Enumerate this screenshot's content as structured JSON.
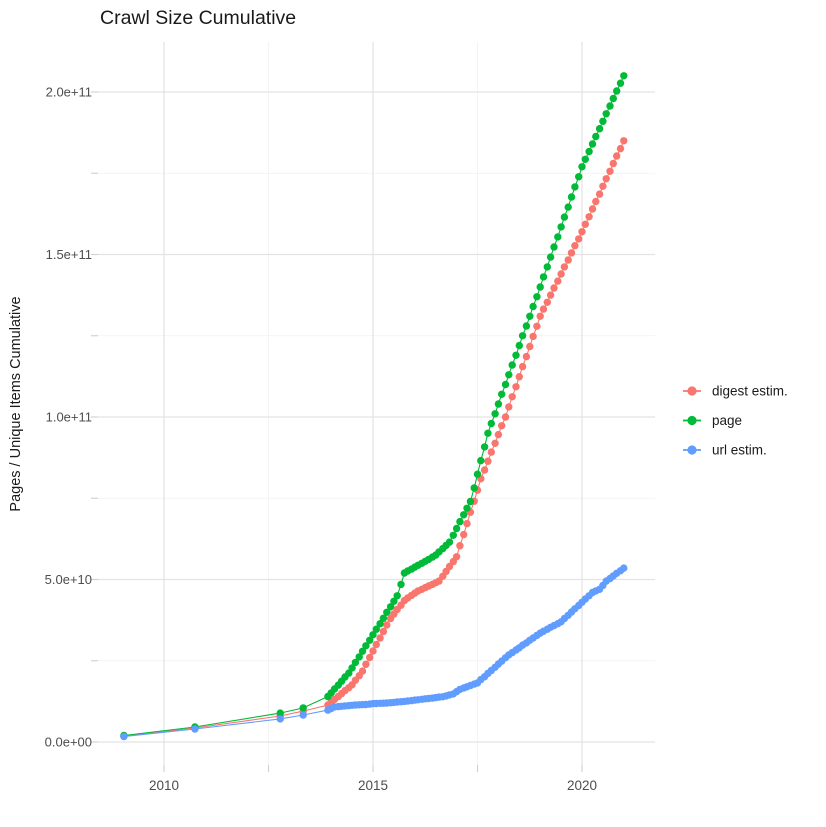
{
  "title": "Crawl Size Cumulative",
  "chart_data": {
    "type": "scatter",
    "title": "Crawl Size Cumulative",
    "xlabel": "",
    "ylabel": "Pages / Unique Items Cumulative",
    "value_unit": "billions (1e9)",
    "xlim": [
      2008.4,
      2021.75
    ],
    "ylim_e9": [
      0,
      215
    ],
    "grid": true,
    "legend_position": "right",
    "x_ticks": [
      {
        "v": 2010,
        "label": "2010"
      },
      {
        "v": 2015,
        "label": "2015"
      },
      {
        "v": 2020,
        "label": "2020"
      }
    ],
    "x_minor": [
      2012.5,
      2017.5
    ],
    "y_ticks": [
      {
        "v": 0,
        "label": "0.0e+00"
      },
      {
        "v": 50,
        "label": "5.0e+10"
      },
      {
        "v": 100,
        "label": "1.0e+11"
      },
      {
        "v": 150,
        "label": "1.5e+11"
      },
      {
        "v": 200,
        "label": "2.0e+11"
      }
    ],
    "y_minor": [
      25,
      75,
      125,
      175
    ],
    "series": [
      {
        "name": "digest estim.",
        "color": "#F8766D",
        "points": [
          [
            2009.04,
            1.8
          ],
          [
            2010.74,
            4.3
          ],
          [
            2012.78,
            8.0
          ],
          [
            2013.33,
            9.5
          ],
          [
            2013.92,
            11.4
          ],
          [
            2014.0,
            12.3
          ],
          [
            2014.08,
            13.1
          ],
          [
            2014.17,
            14.0
          ],
          [
            2014.25,
            14.9
          ],
          [
            2014.33,
            15.8
          ],
          [
            2014.42,
            16.7
          ],
          [
            2014.5,
            17.6
          ],
          [
            2014.58,
            19.0
          ],
          [
            2014.67,
            20.4
          ],
          [
            2014.75,
            21.8
          ],
          [
            2014.83,
            23.9
          ],
          [
            2014.92,
            26.0
          ],
          [
            2015.0,
            28.0
          ],
          [
            2015.08,
            30.0
          ],
          [
            2015.17,
            32.0
          ],
          [
            2015.25,
            34.0
          ],
          [
            2015.33,
            36.0
          ],
          [
            2015.42,
            38.0
          ],
          [
            2015.5,
            39.4
          ],
          [
            2015.58,
            40.8
          ],
          [
            2015.67,
            42.1
          ],
          [
            2015.75,
            43.5
          ],
          [
            2015.83,
            44.3
          ],
          [
            2015.92,
            45.1
          ],
          [
            2016.0,
            45.8
          ],
          [
            2016.08,
            46.5
          ],
          [
            2016.17,
            47.0
          ],
          [
            2016.25,
            47.5
          ],
          [
            2016.33,
            48.0
          ],
          [
            2016.42,
            48.5
          ],
          [
            2016.5,
            49.0
          ],
          [
            2016.58,
            49.5
          ],
          [
            2016.67,
            51.0
          ],
          [
            2016.75,
            52.5
          ],
          [
            2016.83,
            54.0
          ],
          [
            2016.92,
            55.5
          ],
          [
            2017.0,
            57.0
          ],
          [
            2017.08,
            60.4
          ],
          [
            2017.17,
            63.8
          ],
          [
            2017.25,
            67.2
          ],
          [
            2017.33,
            70.7
          ],
          [
            2017.42,
            74.1
          ],
          [
            2017.5,
            77.5
          ],
          [
            2017.58,
            81.0
          ],
          [
            2017.67,
            83.7
          ],
          [
            2017.75,
            86.4
          ],
          [
            2017.83,
            89.2
          ],
          [
            2017.92,
            91.9
          ],
          [
            2018.0,
            94.6
          ],
          [
            2018.08,
            97.3
          ],
          [
            2018.17,
            100.0
          ],
          [
            2018.25,
            103.1
          ],
          [
            2018.33,
            106.2
          ],
          [
            2018.42,
            109.3
          ],
          [
            2018.5,
            112.4
          ],
          [
            2018.58,
            115.5
          ],
          [
            2018.67,
            118.6
          ],
          [
            2018.75,
            121.7
          ],
          [
            2018.83,
            124.8
          ],
          [
            2018.92,
            127.9
          ],
          [
            2019.0,
            131.0
          ],
          [
            2019.08,
            133.2
          ],
          [
            2019.17,
            135.3
          ],
          [
            2019.25,
            137.5
          ],
          [
            2019.33,
            139.7
          ],
          [
            2019.42,
            141.8
          ],
          [
            2019.5,
            144.0
          ],
          [
            2019.58,
            146.2
          ],
          [
            2019.67,
            148.3
          ],
          [
            2019.75,
            150.5
          ],
          [
            2019.83,
            152.7
          ],
          [
            2019.92,
            154.8
          ],
          [
            2020.0,
            157.0
          ],
          [
            2020.08,
            159.3
          ],
          [
            2020.17,
            161.6
          ],
          [
            2020.25,
            164.0
          ],
          [
            2020.33,
            166.3
          ],
          [
            2020.42,
            168.6
          ],
          [
            2020.5,
            171.0
          ],
          [
            2020.58,
            173.3
          ],
          [
            2020.67,
            175.6
          ],
          [
            2020.75,
            178.0
          ],
          [
            2020.83,
            180.3
          ],
          [
            2020.92,
            182.6
          ],
          [
            2021.0,
            185.0
          ]
        ]
      },
      {
        "name": "page",
        "color": "#00BA38",
        "points": [
          [
            2009.04,
            2.0
          ],
          [
            2010.74,
            4.6
          ],
          [
            2012.78,
            8.9
          ],
          [
            2013.33,
            10.5
          ],
          [
            2013.92,
            14.0
          ],
          [
            2014.0,
            15.1
          ],
          [
            2014.08,
            16.3
          ],
          [
            2014.17,
            17.5
          ],
          [
            2014.25,
            18.7
          ],
          [
            2014.33,
            20.0
          ],
          [
            2014.42,
            21.2
          ],
          [
            2014.5,
            22.8
          ],
          [
            2014.58,
            24.5
          ],
          [
            2014.67,
            26.2
          ],
          [
            2014.75,
            27.9
          ],
          [
            2014.83,
            29.6
          ],
          [
            2014.92,
            31.3
          ],
          [
            2015.0,
            33.0
          ],
          [
            2015.08,
            34.7
          ],
          [
            2015.17,
            36.4
          ],
          [
            2015.25,
            38.1
          ],
          [
            2015.33,
            39.9
          ],
          [
            2015.42,
            41.6
          ],
          [
            2015.5,
            43.3
          ],
          [
            2015.58,
            45.0
          ],
          [
            2015.67,
            48.5
          ],
          [
            2015.75,
            52.0
          ],
          [
            2015.83,
            52.6
          ],
          [
            2015.92,
            53.2
          ],
          [
            2016.0,
            53.8
          ],
          [
            2016.08,
            54.4
          ],
          [
            2016.17,
            55.0
          ],
          [
            2016.25,
            55.6
          ],
          [
            2016.33,
            56.2
          ],
          [
            2016.42,
            56.9
          ],
          [
            2016.5,
            57.5
          ],
          [
            2016.58,
            58.5
          ],
          [
            2016.67,
            59.5
          ],
          [
            2016.75,
            60.5
          ],
          [
            2016.83,
            61.5
          ],
          [
            2016.92,
            63.6
          ],
          [
            2017.0,
            65.7
          ],
          [
            2017.08,
            67.8
          ],
          [
            2017.17,
            69.9
          ],
          [
            2017.25,
            71.9
          ],
          [
            2017.33,
            74.0
          ],
          [
            2017.42,
            78.2
          ],
          [
            2017.5,
            82.4
          ],
          [
            2017.58,
            86.6
          ],
          [
            2017.67,
            90.8
          ],
          [
            2017.75,
            95.0
          ],
          [
            2017.83,
            98.0
          ],
          [
            2017.92,
            101.0
          ],
          [
            2018.0,
            104.0
          ],
          [
            2018.08,
            107.0
          ],
          [
            2018.17,
            110.0
          ],
          [
            2018.25,
            113.0
          ],
          [
            2018.33,
            116.0
          ],
          [
            2018.42,
            119.0
          ],
          [
            2018.5,
            122.0
          ],
          [
            2018.58,
            125.0
          ],
          [
            2018.67,
            128.0
          ],
          [
            2018.75,
            131.0
          ],
          [
            2018.83,
            134.0
          ],
          [
            2018.92,
            137.0
          ],
          [
            2019.0,
            140.0
          ],
          [
            2019.08,
            143.1
          ],
          [
            2019.17,
            146.2
          ],
          [
            2019.25,
            149.2
          ],
          [
            2019.33,
            152.3
          ],
          [
            2019.42,
            155.4
          ],
          [
            2019.5,
            158.5
          ],
          [
            2019.58,
            161.5
          ],
          [
            2019.67,
            164.6
          ],
          [
            2019.75,
            167.7
          ],
          [
            2019.83,
            170.8
          ],
          [
            2019.92,
            173.9
          ],
          [
            2020.0,
            177.0
          ],
          [
            2020.08,
            179.3
          ],
          [
            2020.17,
            181.7
          ],
          [
            2020.25,
            184.0
          ],
          [
            2020.33,
            186.3
          ],
          [
            2020.42,
            188.7
          ],
          [
            2020.5,
            191.0
          ],
          [
            2020.58,
            193.3
          ],
          [
            2020.67,
            195.7
          ],
          [
            2020.75,
            198.0
          ],
          [
            2020.83,
            200.3
          ],
          [
            2020.92,
            202.7
          ],
          [
            2021.0,
            205.0
          ]
        ]
      },
      {
        "name": "url estim.",
        "color": "#619CFF",
        "points": [
          [
            2009.04,
            1.7
          ],
          [
            2010.74,
            4.0
          ],
          [
            2012.78,
            7.1
          ],
          [
            2013.33,
            8.3
          ],
          [
            2013.92,
            9.8
          ],
          [
            2014.0,
            10.3
          ],
          [
            2014.08,
            10.8
          ],
          [
            2014.17,
            10.9
          ],
          [
            2014.25,
            11.0
          ],
          [
            2014.33,
            11.1
          ],
          [
            2014.42,
            11.2
          ],
          [
            2014.5,
            11.3
          ],
          [
            2014.58,
            11.4
          ],
          [
            2014.67,
            11.45
          ],
          [
            2014.75,
            11.5
          ],
          [
            2014.83,
            11.55
          ],
          [
            2014.92,
            11.65
          ],
          [
            2015.0,
            11.8
          ],
          [
            2015.08,
            11.85
          ],
          [
            2015.17,
            11.9
          ],
          [
            2015.25,
            11.95
          ],
          [
            2015.33,
            12.0
          ],
          [
            2015.42,
            12.1
          ],
          [
            2015.5,
            12.2
          ],
          [
            2015.58,
            12.3
          ],
          [
            2015.67,
            12.4
          ],
          [
            2015.75,
            12.5
          ],
          [
            2015.83,
            12.6
          ],
          [
            2015.92,
            12.75
          ],
          [
            2016.0,
            12.9
          ],
          [
            2016.08,
            13.0
          ],
          [
            2016.17,
            13.15
          ],
          [
            2016.25,
            13.3
          ],
          [
            2016.33,
            13.4
          ],
          [
            2016.42,
            13.5
          ],
          [
            2016.5,
            13.65
          ],
          [
            2016.58,
            13.8
          ],
          [
            2016.67,
            13.9
          ],
          [
            2016.75,
            14.2
          ],
          [
            2016.83,
            14.5
          ],
          [
            2016.92,
            14.8
          ],
          [
            2017.0,
            15.5
          ],
          [
            2017.08,
            16.2
          ],
          [
            2017.17,
            16.6
          ],
          [
            2017.25,
            17.0
          ],
          [
            2017.33,
            17.4
          ],
          [
            2017.42,
            17.8
          ],
          [
            2017.5,
            18.2
          ],
          [
            2017.58,
            19.2
          ],
          [
            2017.67,
            20.1
          ],
          [
            2017.75,
            21.1
          ],
          [
            2017.83,
            22.0
          ],
          [
            2017.92,
            23.0
          ],
          [
            2018.0,
            24.0
          ],
          [
            2018.08,
            24.9
          ],
          [
            2018.17,
            25.9
          ],
          [
            2018.25,
            26.8
          ],
          [
            2018.33,
            27.5
          ],
          [
            2018.42,
            28.3
          ],
          [
            2018.5,
            29.0
          ],
          [
            2018.58,
            29.8
          ],
          [
            2018.67,
            30.5
          ],
          [
            2018.75,
            31.3
          ],
          [
            2018.83,
            32.0
          ],
          [
            2018.92,
            32.8
          ],
          [
            2019.0,
            33.5
          ],
          [
            2019.08,
            34.1
          ],
          [
            2019.17,
            34.7
          ],
          [
            2019.25,
            35.3
          ],
          [
            2019.33,
            35.8
          ],
          [
            2019.42,
            36.4
          ],
          [
            2019.5,
            37.0
          ],
          [
            2019.58,
            38.0
          ],
          [
            2019.67,
            39.0
          ],
          [
            2019.75,
            40.0
          ],
          [
            2019.83,
            41.0
          ],
          [
            2019.92,
            42.0
          ],
          [
            2020.0,
            43.0
          ],
          [
            2020.08,
            44.0
          ],
          [
            2020.17,
            45.0
          ],
          [
            2020.25,
            46.0
          ],
          [
            2020.33,
            46.5
          ],
          [
            2020.42,
            47.0
          ],
          [
            2020.5,
            48.2
          ],
          [
            2020.58,
            49.5
          ],
          [
            2020.67,
            50.3
          ],
          [
            2020.75,
            51.1
          ],
          [
            2020.83,
            51.9
          ],
          [
            2020.92,
            52.7
          ],
          [
            2021.0,
            53.5
          ]
        ]
      }
    ],
    "legend": {
      "items": [
        {
          "label": "digest estim.",
          "color": "#F8766D"
        },
        {
          "label": "page",
          "color": "#00BA38"
        },
        {
          "label": "url estim.",
          "color": "#619CFF"
        }
      ]
    },
    "colors": {
      "grid_major": "#E3E3E3",
      "grid_minor": "#F0F0F0",
      "tick_mark": "#CFCFCF",
      "tick_label": "#4D4D4D",
      "text": "#1a1a1a",
      "background": "#ffffff"
    }
  }
}
